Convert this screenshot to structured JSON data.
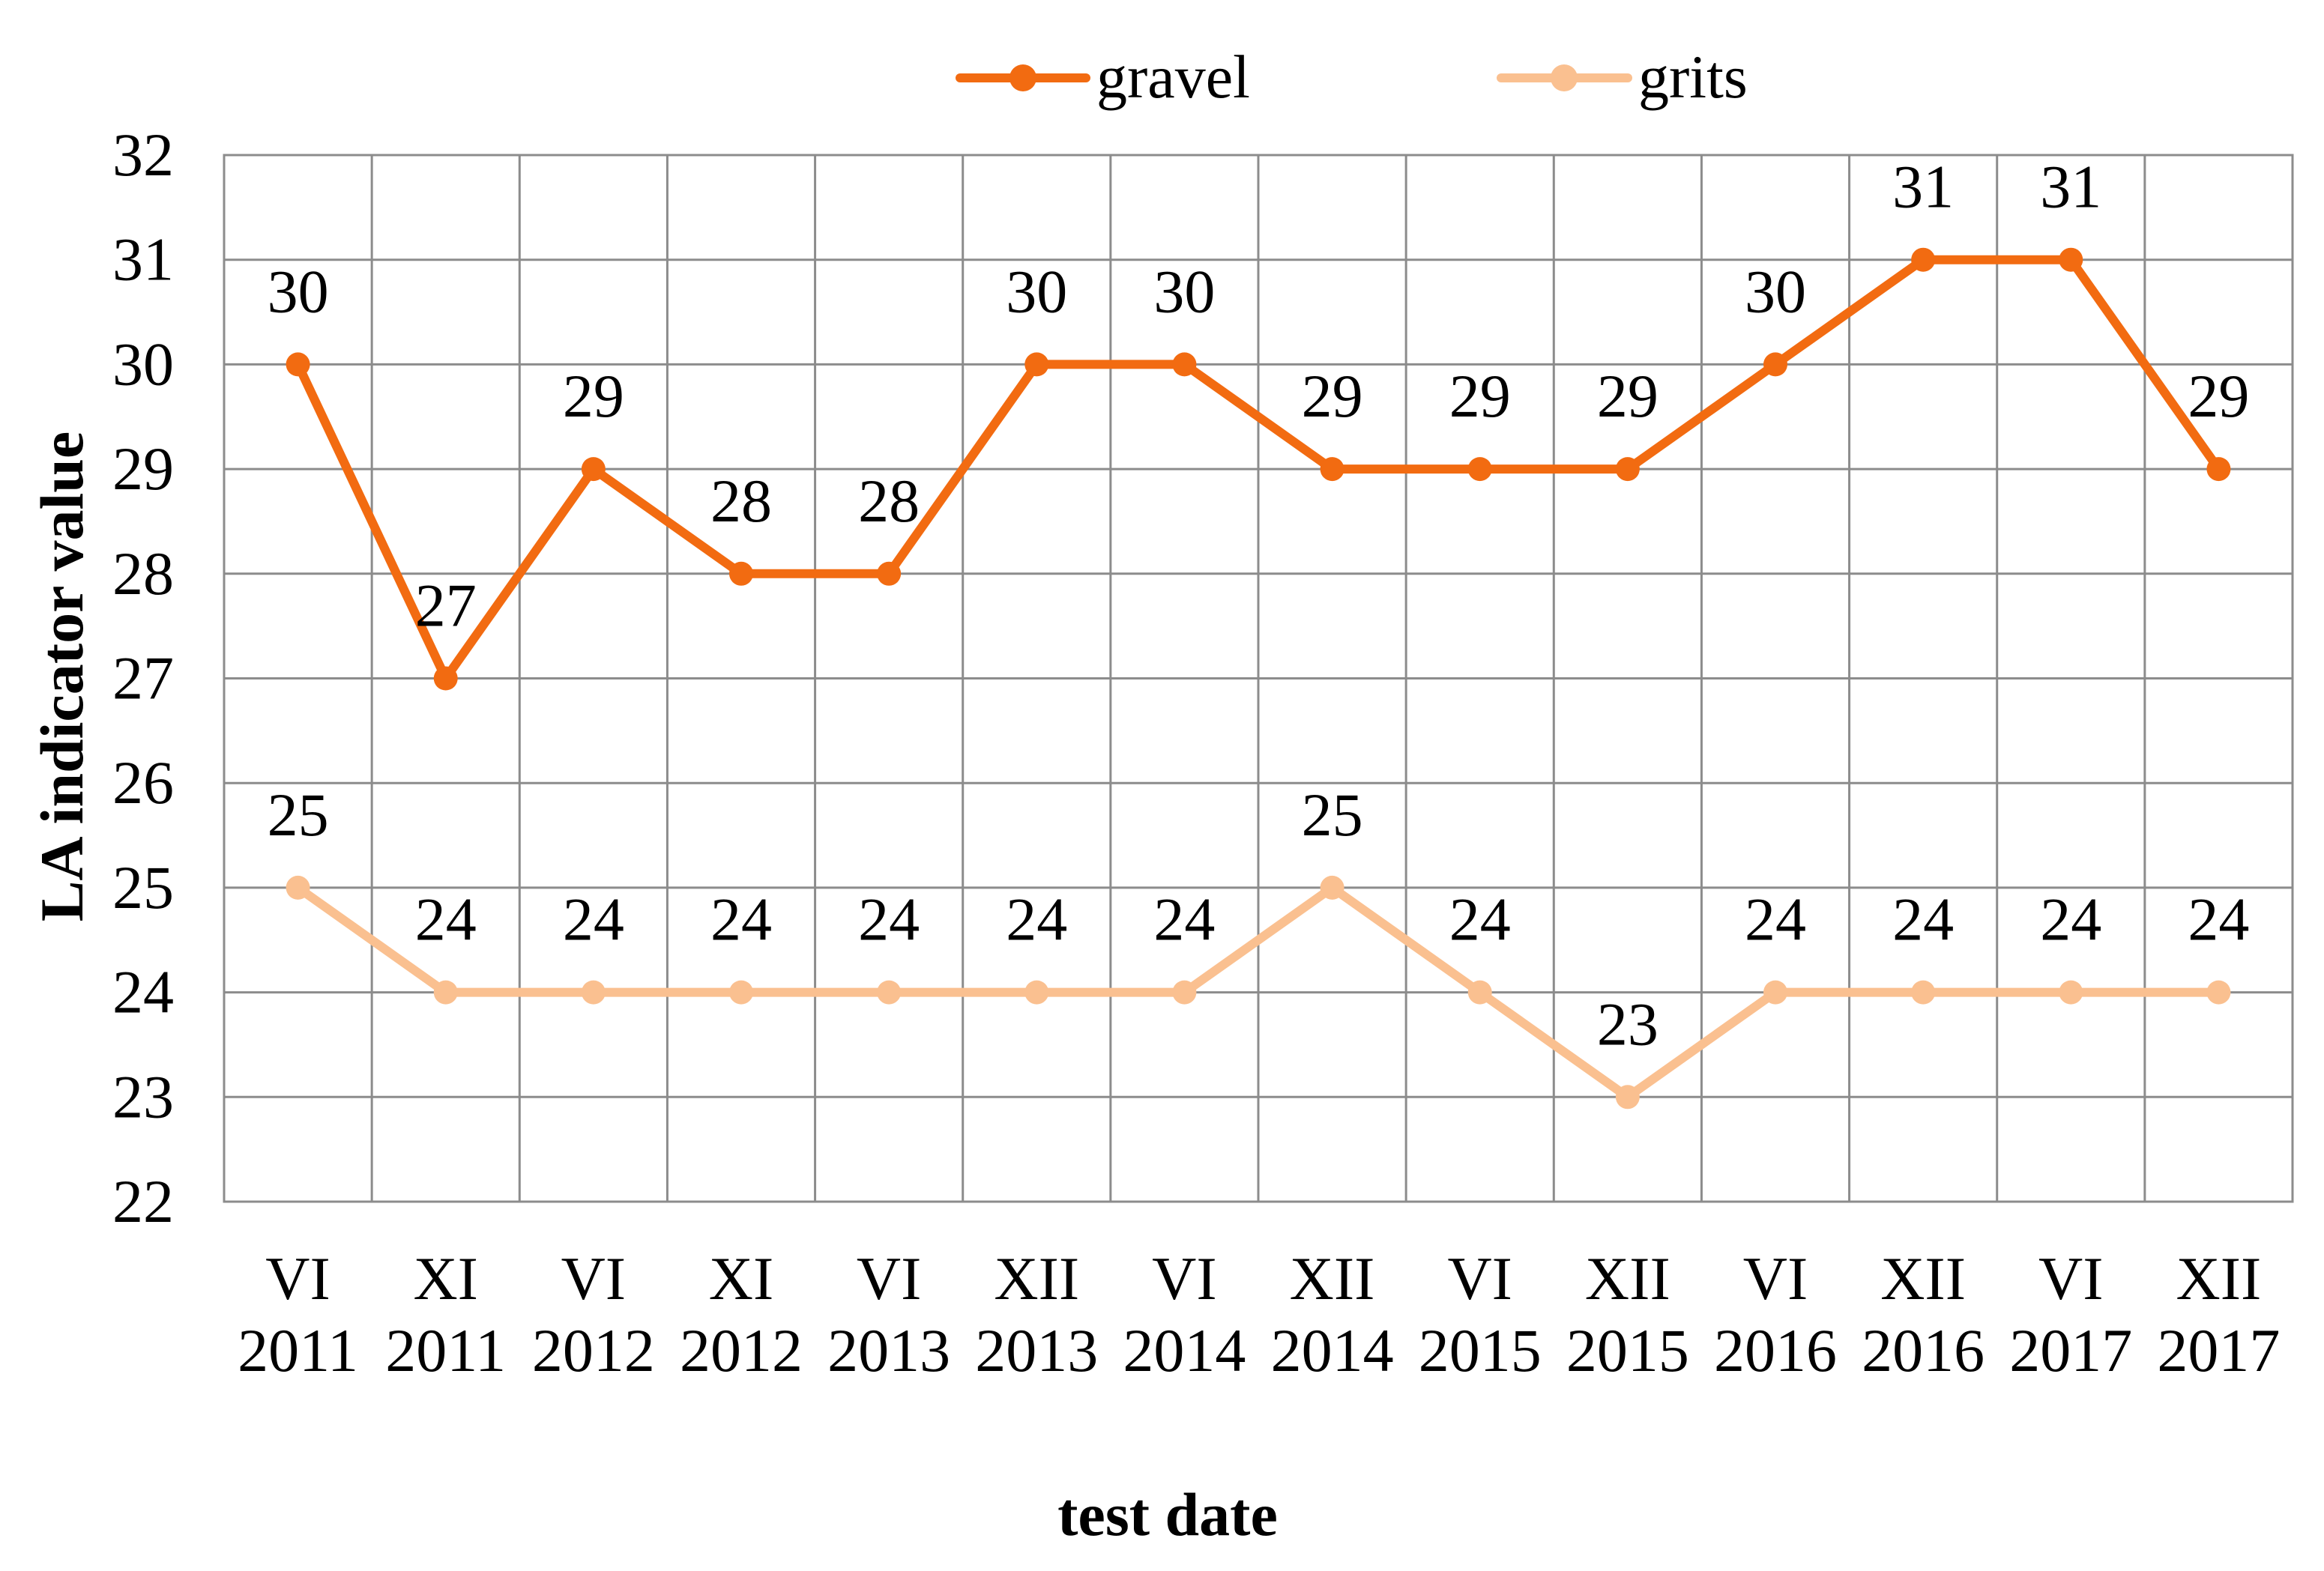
{
  "chart_data": {
    "type": "line",
    "categories": [
      {
        "month": "VI",
        "year": "2011"
      },
      {
        "month": "XI",
        "year": "2011"
      },
      {
        "month": "VI",
        "year": "2012"
      },
      {
        "month": "XI",
        "year": "2012"
      },
      {
        "month": "VI",
        "year": "2013"
      },
      {
        "month": "XII",
        "year": "2013"
      },
      {
        "month": "VI",
        "year": "2014"
      },
      {
        "month": "XII",
        "year": "2014"
      },
      {
        "month": "VI",
        "year": "2015"
      },
      {
        "month": "XII",
        "year": "2015"
      },
      {
        "month": "VI",
        "year": "2016"
      },
      {
        "month": "XII",
        "year": "2016"
      },
      {
        "month": "VI",
        "year": "2017"
      },
      {
        "month": "XII",
        "year": "2017"
      }
    ],
    "series": [
      {
        "name": "gravel",
        "color": "#F26B11",
        "values": [
          30,
          27,
          29,
          28,
          28,
          30,
          30,
          29,
          29,
          29,
          30,
          31,
          31,
          29
        ]
      },
      {
        "name": "grits",
        "color": "#FAC090",
        "values": [
          25,
          24,
          24,
          24,
          24,
          24,
          24,
          25,
          24,
          23,
          24,
          24,
          24,
          24
        ]
      }
    ],
    "xlabel": "test date",
    "ylabel": "LA indicator value",
    "ylim": [
      22,
      32
    ],
    "yticks": [
      22,
      23,
      24,
      25,
      26,
      27,
      28,
      29,
      30,
      31,
      32
    ],
    "grid": true,
    "data_labels": true,
    "legend": "top",
    "gridline_color": "#8C8C8C"
  }
}
